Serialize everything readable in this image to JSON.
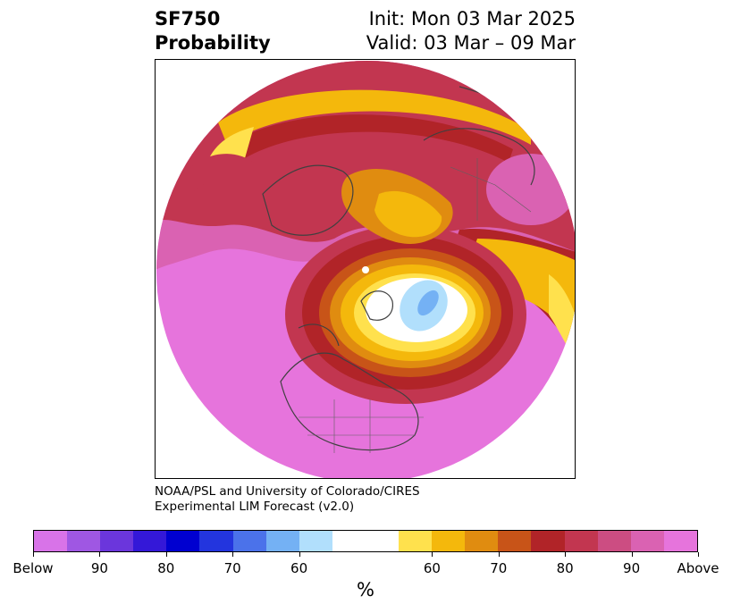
{
  "title": {
    "variable": "SF750",
    "subtitle": "Probability",
    "init": "Init: Mon 03 Mar 2025",
    "valid": "Valid: 03 Mar – 09 Mar"
  },
  "credit": {
    "line1": "NOAA/PSL and University of Colorado/CIRES",
    "line2": "Experimental LIM Forecast (v2.0)"
  },
  "colorbar": {
    "unit": "%",
    "colors": [
      "#d873e8",
      "#9f57e3",
      "#6b36dc",
      "#3418d8",
      "#0000d0",
      "#2335de",
      "#4b72ea",
      "#74b1f4",
      "#b1dffc",
      "#ffffff",
      "#ffffff",
      "#ffe14d",
      "#f4b80c",
      "#e08c10",
      "#c85418",
      "#b12428",
      "#c23650",
      "#cc4d82",
      "#da62b2",
      "#e674dc"
    ],
    "ticks": [
      "Below",
      "90",
      "80",
      "70",
      "60",
      "60",
      "70",
      "80",
      "90",
      "Above"
    ]
  },
  "map": {
    "projection": "polar stereographic, North Pole",
    "legend_colors": {
      "above_max": "#e674dc",
      "above_90": "#da62b2",
      "above_80": "#c23650",
      "above_70": "#c85418",
      "above_60": "#f4b80c",
      "above_50": "#ffe14d",
      "below_50": "#b1dffc",
      "below_60": "#74b1f4"
    }
  }
}
